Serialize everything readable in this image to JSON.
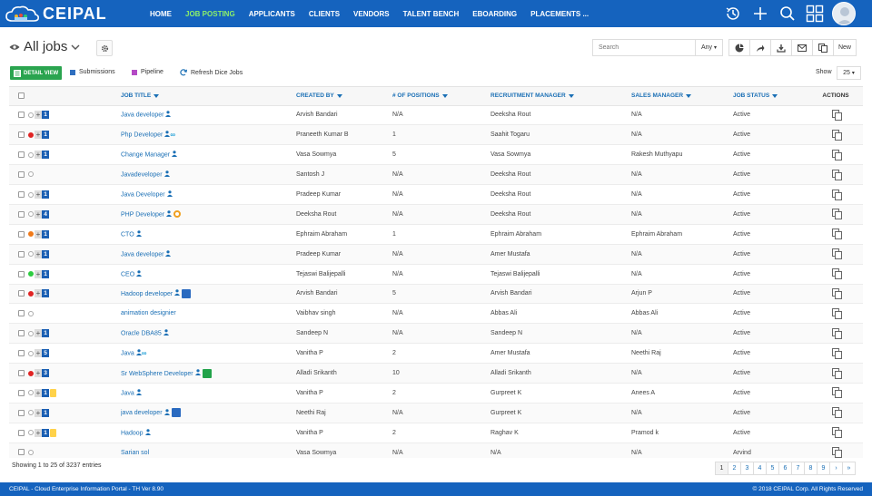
{
  "brand": {
    "name": "CEIPAL"
  },
  "nav": [
    "HOME",
    "JOB POSTING",
    "APPLICANTS",
    "CLIENTS",
    "VENDORS",
    "TALENT BENCH",
    "EBOARDING",
    "PLACEMENTS ..."
  ],
  "nav_active_index": 1,
  "view": {
    "title": "All jobs"
  },
  "search": {
    "placeholder": "Search",
    "scope": "Any"
  },
  "toolbar": {
    "new_label": "New"
  },
  "subbar": {
    "detail_view": "DETAIL VIEW",
    "submissions": "Submissions",
    "pipeline": "Pipeline",
    "refresh": "Refresh Dice Jobs",
    "show_label": "Show",
    "show_value": "25"
  },
  "columns": [
    "JOB TITLE",
    "CREATED BY",
    "# OF POSITIONS",
    "RECRUITMENT MANAGER",
    "SALES MANAGER",
    "JOB STATUS",
    "ACTIONS"
  ],
  "colors": {
    "brand": "#1563be",
    "active_nav": "#8cf06a",
    "link": "#1a6fb5",
    "detail_btn": "#2aa44f",
    "submissions": "#2f6fbf",
    "pipeline": "#b44ac5"
  },
  "rows": [
    {
      "dot": "#ffffff",
      "count": "1",
      "yellow": false,
      "title": "Java developer",
      "badges": [
        "person"
      ],
      "created": "Arvish Bandari",
      "positions": "N/A",
      "rec": "Deeksha Rout",
      "sales": "N/A",
      "status": "Active"
    },
    {
      "dot": "#e02424",
      "count": "1",
      "yellow": false,
      "title": "Php Developer",
      "badges": [
        "person",
        "inf"
      ],
      "created": "Praneeth Kumar B",
      "positions": "1",
      "rec": "Saahit Togaru",
      "sales": "N/A",
      "status": "Active"
    },
    {
      "dot": "#ffffff",
      "count": "1",
      "yellow": false,
      "title": "Change Manager",
      "badges": [
        "person"
      ],
      "created": "Vasa Sowmya",
      "positions": "5",
      "rec": "Vasa Sowmya",
      "sales": "Rakesh Muthyapu",
      "status": "Active"
    },
    {
      "dot": "#ffffff",
      "count": "",
      "yellow": false,
      "title": "Javadeveloper",
      "badges": [
        "person"
      ],
      "created": "Santosh J",
      "positions": "N/A",
      "rec": "Deeksha Rout",
      "sales": "N/A",
      "status": "Active"
    },
    {
      "dot": "#ffffff",
      "count": "1",
      "yellow": false,
      "title": "Java Developer",
      "badges": [
        "person"
      ],
      "created": "Pradeep Kumar",
      "positions": "N/A",
      "rec": "Deeksha Rout",
      "sales": "N/A",
      "status": "Active"
    },
    {
      "dot": "#ffffff",
      "count": "4",
      "yellow": false,
      "title": "PHP Developer",
      "badges": [
        "person",
        "orange"
      ],
      "created": "Deeksha Rout",
      "positions": "N/A",
      "rec": "Deeksha Rout",
      "sales": "N/A",
      "status": "Active"
    },
    {
      "dot": "#f07a1a",
      "count": "1",
      "yellow": false,
      "title": "CTO",
      "badges": [
        "person"
      ],
      "created": "Ephraim Abraham",
      "positions": "1",
      "rec": "Ephraim Abraham",
      "sales": "Ephraim Abraham",
      "status": "Active"
    },
    {
      "dot": "#ffffff",
      "count": "1",
      "yellow": false,
      "title": "Java developer",
      "badges": [
        "person"
      ],
      "created": "Pradeep Kumar",
      "positions": "N/A",
      "rec": "Amer Mustafa",
      "sales": "N/A",
      "status": "Active"
    },
    {
      "dot": "#2ecc40",
      "count": "1",
      "yellow": false,
      "title": "CEO",
      "badges": [
        "person"
      ],
      "created": "Tejaswi Balijepalli",
      "positions": "N/A",
      "rec": "Tejaswi Balijepalli",
      "sales": "N/A",
      "status": "Active"
    },
    {
      "dot": "#e02424",
      "count": "1",
      "yellow": false,
      "title": "Hadoop developer",
      "badges": [
        "person",
        "blue"
      ],
      "created": "Arvish Bandari",
      "positions": "5",
      "rec": "Arvish Bandari",
      "sales": "Arjun P",
      "status": "Active"
    },
    {
      "dot": "#ffffff",
      "count": "",
      "yellow": false,
      "title": "animation designier",
      "badges": [],
      "created": "Vaibhav singh",
      "positions": "N/A",
      "rec": "Abbas Ali",
      "sales": "Abbas Ali",
      "status": "Active"
    },
    {
      "dot": "#ffffff",
      "count": "1",
      "yellow": false,
      "title": "Oracle DBA85",
      "badges": [
        "person"
      ],
      "created": "Sandeep N",
      "positions": "N/A",
      "rec": "Sandeep N",
      "sales": "N/A",
      "status": "Active"
    },
    {
      "dot": "#ffffff",
      "count": "5",
      "yellow": false,
      "title": "Java",
      "badges": [
        "person",
        "inf"
      ],
      "created": "Vanitha P",
      "positions": "2",
      "rec": "Amer Mustafa",
      "sales": "Neethi Raj",
      "status": "Active"
    },
    {
      "dot": "#e02424",
      "count": "3",
      "yellow": false,
      "title": "Sr WebSphere Developer",
      "badges": [
        "person",
        "green"
      ],
      "created": "Alladi Srikanth",
      "positions": "10",
      "rec": "Alladi Srikanth",
      "sales": "N/A",
      "status": "Active"
    },
    {
      "dot": "#ffffff",
      "count": "1",
      "yellow": true,
      "title": "Java",
      "badges": [
        "person"
      ],
      "created": "Vanitha P",
      "positions": "2",
      "rec": "Gurpreet K",
      "sales": "Anees A",
      "status": "Active"
    },
    {
      "dot": "#ffffff",
      "count": "1",
      "yellow": false,
      "title": "java developer",
      "badges": [
        "person",
        "blue"
      ],
      "created": "Neethi Raj",
      "positions": "N/A",
      "rec": "Gurpreet K",
      "sales": "N/A",
      "status": "Active"
    },
    {
      "dot": "#ffffff",
      "count": "1",
      "yellow": true,
      "title": "Hadoop",
      "badges": [
        "person"
      ],
      "created": "Vanitha P",
      "positions": "2",
      "rec": "Raghav K",
      "sales": "Pramod k",
      "status": "Active"
    },
    {
      "dot": "#ffffff",
      "count": "",
      "yellow": false,
      "title": "Sarian sol",
      "badges": [],
      "created": "Vasa Sowmya",
      "positions": "N/A",
      "rec": "N/A",
      "sales": "N/A",
      "status": "Arvind"
    }
  ],
  "status": {
    "showing": "Showing 1 to 25 of 3237 entries"
  },
  "pager": [
    "1",
    "2",
    "3",
    "4",
    "5",
    "6",
    "7",
    "8",
    "9",
    "›",
    "»"
  ],
  "footer": {
    "left": "CEIPAL - Cloud Enterprise Information Portal - TH Ver 8.90",
    "right": "© 2018 CEIPAL Corp. All Rights Reserved"
  }
}
